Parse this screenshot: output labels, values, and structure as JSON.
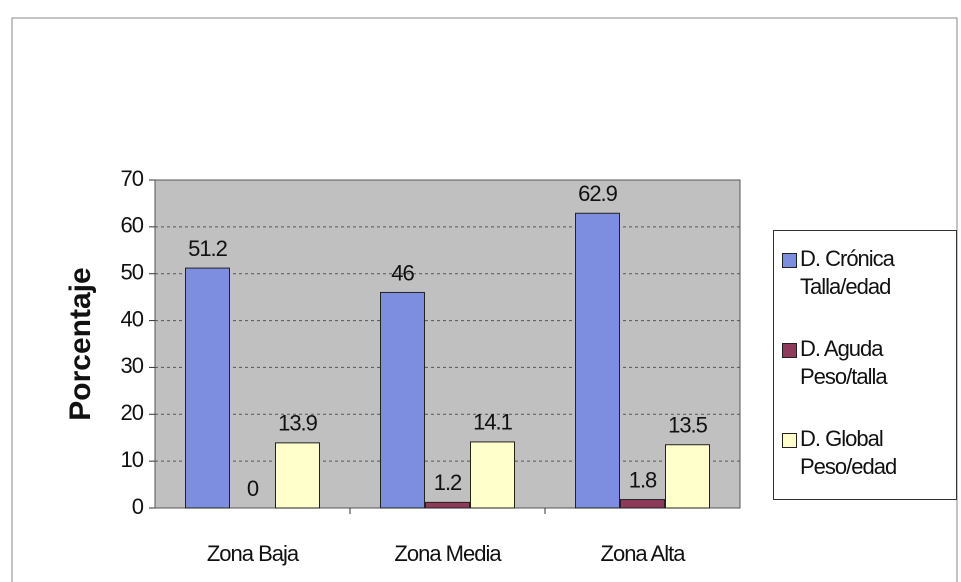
{
  "chart_data": {
    "type": "bar",
    "y_label": "Porcentaje",
    "categories": [
      "Zona Baja",
      "Zona Media",
      "Zona Alta"
    ],
    "series": [
      {
        "name": "D. Crónica Talla/edad",
        "color": "#7d8ee0",
        "values": [
          51.2,
          46,
          62.9
        ]
      },
      {
        "name": "D. Aguda Peso/talla",
        "color": "#8e3a5a",
        "values": [
          0,
          1.2,
          1.8
        ]
      },
      {
        "name": "D. Global Peso/edad",
        "color": "#ffffcc",
        "values": [
          13.9,
          14.1,
          13.5
        ]
      }
    ],
    "ylim": [
      0,
      70
    ],
    "yticks": [
      0,
      10,
      20,
      30,
      40,
      50,
      60,
      70
    ],
    "grid": true,
    "legend": "right"
  }
}
